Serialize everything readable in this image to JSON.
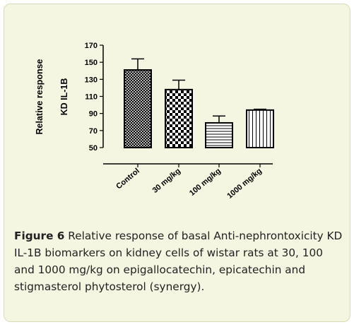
{
  "chart_data": {
    "type": "bar",
    "categories": [
      "Control",
      "30 mg/kg",
      "100 mg/kg",
      "1000 mg/kg"
    ],
    "values": [
      141,
      118,
      79,
      94
    ],
    "errors": [
      13,
      11,
      8,
      1
    ],
    "ylabel_line1": "Relative response",
    "ylabel_line2": "KD IL-1B",
    "ylim": [
      50,
      170
    ],
    "yticks": [
      50,
      70,
      90,
      110,
      130,
      150,
      170
    ],
    "patterns": [
      "cross-hatch",
      "checkerboard",
      "horizontal-lines",
      "vertical-lines"
    ],
    "bar_fill": "#ffffff",
    "stroke_color": "#000000"
  },
  "caption": {
    "label": "Figure 6",
    "text": " Relative response of basal Anti-nephrontoxicity KD IL-1B biomarkers on kidney cells of wistar rats at 30, 100 and 1000 mg/kg on epigallocatechin, epicatechin and stigmasterol phytosterol (synergy)."
  },
  "colors": {
    "panel_bg": "#f5f6e2",
    "panel_border": "#d9dbb8"
  }
}
